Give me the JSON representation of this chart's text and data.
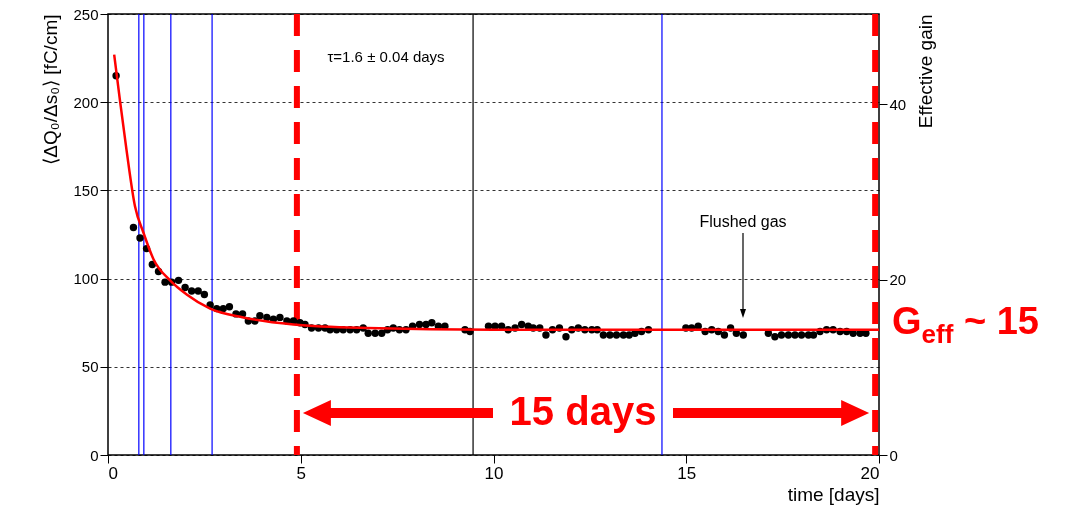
{
  "chart_data": {
    "type": "scatter",
    "ylabel": "⟨ΔQ₀/Δs₀⟩ [fC/cm]",
    "xlabel": "time [days]",
    "y2label": "Effective gain",
    "xlim": [
      0,
      20
    ],
    "xticks": [
      0,
      5,
      10,
      15,
      20
    ],
    "ylim": [
      0,
      250
    ],
    "yticks": [
      0,
      50,
      100,
      150,
      200,
      250
    ],
    "y2lim": [
      0,
      50.3
    ],
    "y2ticks": [
      0,
      20,
      40
    ],
    "grid": "y",
    "series": [
      {
        "color": "#000000",
        "x": [
          0.21,
          0.66,
          0.83,
          1.0,
          1.15,
          1.31,
          1.48,
          1.65,
          1.83,
          2.0,
          2.17,
          2.34,
          2.5,
          2.65,
          2.82,
          2.99,
          3.15,
          3.32,
          3.49,
          3.64,
          3.81,
          3.94,
          4.12,
          4.29,
          4.46,
          4.64,
          4.81,
          4.98,
          5.11,
          5.28,
          5.46,
          5.63,
          5.76,
          5.93,
          6.1,
          6.28,
          6.45,
          6.62,
          6.75,
          6.93,
          7.1,
          7.25,
          7.4,
          7.56,
          7.73,
          7.9,
          8.08,
          8.25,
          8.4,
          8.57,
          8.74,
          9.26,
          9.39,
          9.87,
          10.04,
          10.21,
          10.38,
          10.56,
          10.73,
          10.9,
          11.03,
          11.2,
          11.36,
          11.53,
          11.71,
          11.88,
          12.03,
          12.2,
          12.37,
          12.55,
          12.69,
          12.85,
          13.02,
          13.19,
          13.37,
          13.52,
          13.67,
          13.84,
          14.02,
          14.99,
          15.14,
          15.31,
          15.49,
          15.66,
          15.83,
          15.99,
          16.15,
          16.3,
          16.48,
          17.13,
          17.3,
          17.47,
          17.65,
          17.82,
          17.99,
          18.17,
          18.3,
          18.47,
          18.64,
          18.81,
          18.99,
          19.16,
          19.33,
          19.51,
          19.66
        ],
        "marker": "circle",
        "values": [
          215,
          129,
          123,
          117,
          108,
          104,
          98,
          98,
          99,
          95,
          93,
          93,
          91,
          85,
          83,
          83,
          84,
          80,
          80,
          76,
          76,
          79,
          78,
          77,
          78,
          76,
          76,
          75,
          74,
          72,
          72,
          72,
          71,
          71,
          71,
          71,
          71,
          72,
          69,
          69,
          69,
          71,
          72,
          71,
          71,
          73,
          74,
          74,
          75,
          73,
          73,
          71,
          70,
          73,
          73,
          73,
          71,
          72,
          74,
          73,
          72,
          72,
          68,
          71,
          72,
          67,
          71,
          72,
          71,
          71,
          71,
          68,
          68,
          68,
          68,
          68,
          69,
          70,
          71,
          72,
          72,
          73,
          70,
          71,
          70,
          68,
          72,
          69,
          68,
          69,
          67,
          68,
          68,
          68,
          68,
          68,
          68,
          70,
          71,
          71,
          70,
          70,
          69,
          69,
          69
        ]
      },
      {
        "type": "line",
        "color": "#ff0000",
        "x": [
          0.16,
          0.31,
          0.48,
          0.7,
          0.92,
          1.18,
          1.61,
          2.04,
          2.65,
          3.51,
          4.81,
          6.71,
          10,
          15,
          20
        ],
        "values": [
          227,
          201,
          173,
          141,
          126,
          111,
          99,
          91,
          83,
          78,
          74,
          72,
          71,
          71,
          71
        ]
      }
    ],
    "ref_lines": [
      {
        "axis": "x",
        "value": 0.8,
        "color": "#0000ff"
      },
      {
        "axis": "x",
        "value": 0.93,
        "color": "#0000ff"
      },
      {
        "axis": "x",
        "value": 1.63,
        "color": "#0000ff"
      },
      {
        "axis": "x",
        "value": 2.7,
        "color": "#0000ff"
      },
      {
        "axis": "x",
        "value": 9.47,
        "color": "#000000"
      },
      {
        "axis": "x",
        "value": 14.37,
        "color": "#0000ff"
      },
      {
        "axis": "x",
        "value": 4.9,
        "color": "#ff0000",
        "line_style": "dashed"
      },
      {
        "axis": "x",
        "value": 19.9,
        "color": "#ff0000",
        "line_style": "dashed"
      }
    ],
    "annotations": [
      "τ=1.6 ± 0.04 days",
      "Flushed gas",
      "15 days",
      "G$_{eff}$ ~ 15"
    ]
  }
}
